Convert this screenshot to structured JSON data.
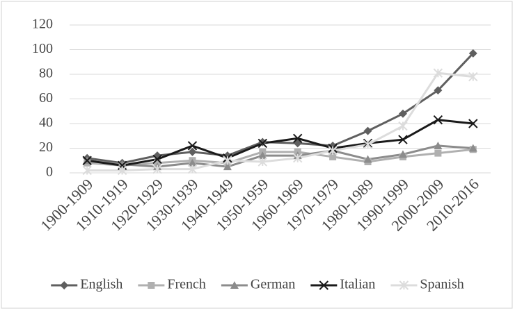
{
  "chart_data": {
    "type": "line",
    "categories": [
      "1900-1909",
      "1910-1919",
      "1920-1929",
      "1930-1939",
      "1940-1949",
      "1950-1959",
      "1960-1969",
      "1970-1979",
      "1980-1989",
      "1990-1999",
      "2000-2009",
      "2010-2016"
    ],
    "series": [
      {
        "name": "English",
        "color": "#5f5f5f",
        "marker": "diamond",
        "values": [
          12,
          8,
          14,
          17,
          14,
          25,
          24,
          22,
          34,
          48,
          67,
          97
        ]
      },
      {
        "name": "French",
        "color": "#b0b0b0",
        "marker": "square",
        "values": [
          8,
          6,
          8,
          10,
          8,
          17,
          17,
          13,
          9,
          13,
          16,
          19
        ]
      },
      {
        "name": "German",
        "color": "#8c8c8c",
        "marker": "triangle",
        "values": [
          10,
          7,
          5,
          8,
          5,
          14,
          14,
          18,
          11,
          15,
          22,
          20
        ]
      },
      {
        "name": "Italian",
        "color": "#1a1a1a",
        "marker": "x",
        "values": [
          10,
          6,
          11,
          22,
          12,
          24,
          28,
          20,
          24,
          27,
          43,
          40
        ]
      },
      {
        "name": "Spanish",
        "color": "#dcdcdc",
        "marker": "star",
        "values": [
          2,
          2,
          3,
          3,
          10,
          9,
          12,
          18,
          23,
          38,
          81,
          78
        ]
      }
    ],
    "ylim": [
      0,
      120
    ],
    "yticks": [
      0,
      20,
      40,
      60,
      80,
      100,
      120
    ],
    "grid": true,
    "legend": "bottom"
  }
}
